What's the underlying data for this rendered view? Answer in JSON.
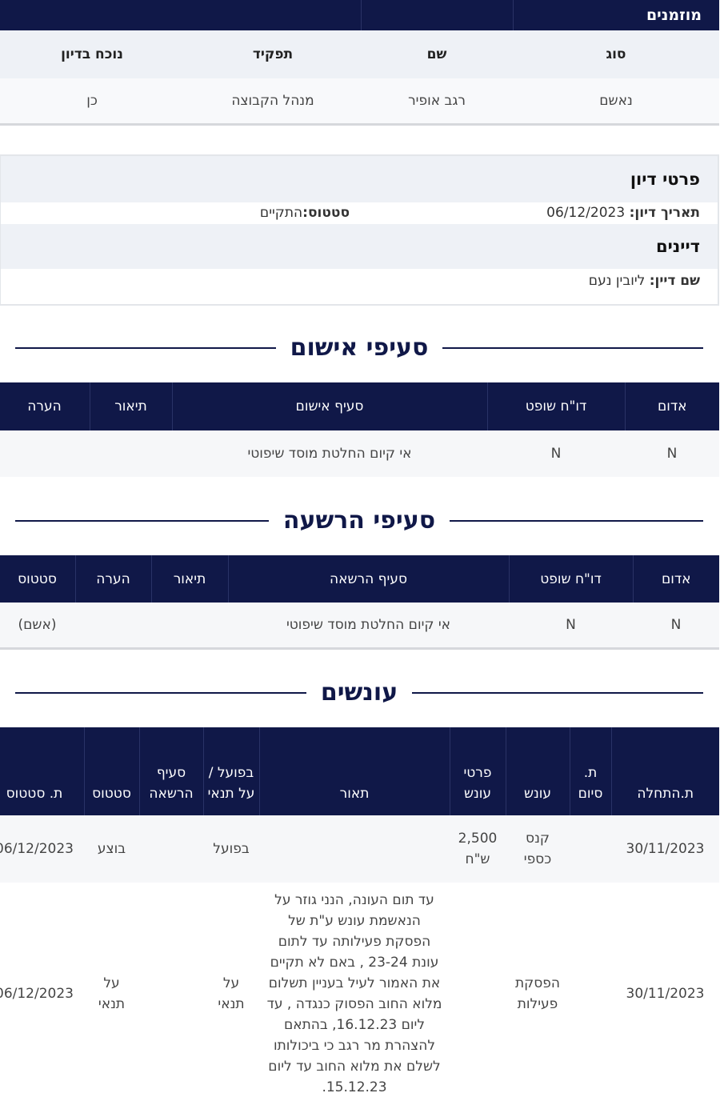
{
  "invited": {
    "title": "מוזמנים",
    "headers": [
      "סוג",
      "שם",
      "תפקיד",
      "נוכח בדיון"
    ],
    "row": [
      "נאשם",
      "רגב אופיר",
      "מנהל הקבוצה",
      "כן"
    ]
  },
  "hearing": {
    "title": "פרטי דיון",
    "date_label": "תאריך דיון:",
    "date": "06/12/2023",
    "status_label": "סטטוס:",
    "status": "התקיים",
    "judges_title": "דיינים",
    "judge_label": "שם דיין:",
    "judge": "ליובין נעם"
  },
  "charges": {
    "title": "סעיפי אישום",
    "headers": [
      "אדום",
      "דו\"ח שופט",
      "סעיף אישום",
      "תיאור",
      "הערה"
    ],
    "row": [
      "N",
      "N",
      "אי קיום החלטת מוסד שיפוטי",
      "",
      ""
    ]
  },
  "convictions": {
    "title": "סעיפי הרשעה",
    "headers": [
      "אדום",
      "דו\"ח שופט",
      "סעיף הרשאה",
      "תיאור",
      "הערה",
      "סטטוס"
    ],
    "row": [
      "N",
      "N",
      "אי קיום החלטת מוסד שיפוטי",
      "",
      "",
      "(אשם)"
    ]
  },
  "punishments": {
    "title": "עונשים",
    "headers": [
      "ת.התחלה",
      "ת. סיום",
      "עונש",
      "פרטי עונש",
      "תאור",
      "בפועל / על תנאי",
      "סעיף הרשאה",
      "סטטוס",
      "ת. סטטוס"
    ],
    "rows": [
      [
        "30/11/2023",
        "",
        "קנס כספי",
        "2,500 ש\"ח",
        "",
        "בפועל",
        "",
        "בוצע",
        "06/12/2023"
      ],
      [
        "30/11/2023",
        "",
        "הפסקת פעילות",
        "",
        "עד תום העונה, הנני גוזר על הנאשמת עונש ע\"ת של הפסקת פעילותה עד לתום עונת 23-24 , באם לא תקיים את האמור לעיל בעניין תשלום מלוא החוב הפסוק כנגדה , עד ליום 16.12.23, בהתאם להצהרת מר רגב כי ביכולותו לשלם את מלוא החוב עד ליום 15.12.23.",
        "על תנאי",
        "",
        "על תנאי",
        "06/12/2023"
      ]
    ]
  },
  "colors": {
    "navy": "#101848",
    "band": "#eef1f6"
  }
}
